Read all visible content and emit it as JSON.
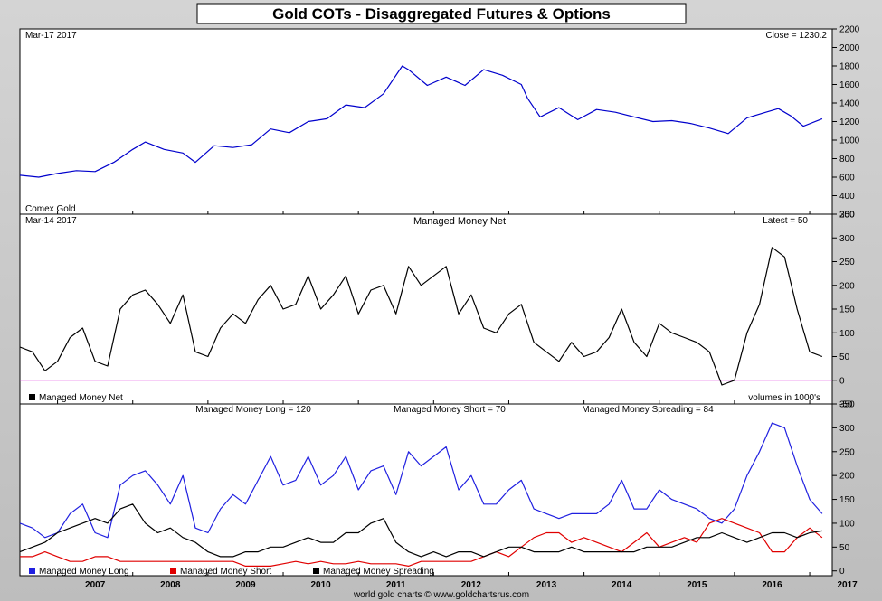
{
  "title": "Gold COTs - Disaggregated Futures & Options",
  "footer": "world gold charts © www.goldchartsrus.com",
  "years": [
    "2007",
    "2008",
    "2009",
    "2010",
    "2011",
    "2012",
    "2013",
    "2014",
    "2015",
    "2016",
    "2017"
  ],
  "colors": {
    "gold": "#0000cc",
    "net": "#000000",
    "zero": "#e040e0",
    "long": "#2020e0",
    "short": "#e00000",
    "spreading": "#000000"
  },
  "chart_data": [
    {
      "type": "line",
      "panel": "price",
      "title": "",
      "date_label": "Mar-17  2017",
      "readout": "Close = 1230.2",
      "label": "Comex Gold",
      "ylim": [
        200,
        2200
      ],
      "yticks": [
        "200",
        "400",
        "600",
        "800",
        "1000",
        "1200",
        "1400",
        "1600",
        "1800",
        "2000",
        "2200"
      ],
      "x": [
        "2006-07",
        "2006-10",
        "2007-01",
        "2007-04",
        "2007-07",
        "2007-10",
        "2008-01",
        "2008-03",
        "2008-06",
        "2008-09",
        "2008-11",
        "2009-02",
        "2009-05",
        "2009-08",
        "2009-11",
        "2010-02",
        "2010-05",
        "2010-08",
        "2010-11",
        "2011-02",
        "2011-05",
        "2011-08",
        "2011-09",
        "2011-12",
        "2012-03",
        "2012-06",
        "2012-09",
        "2012-12",
        "2013-03",
        "2013-04",
        "2013-06",
        "2013-09",
        "2013-12",
        "2014-03",
        "2014-06",
        "2014-09",
        "2014-12",
        "2015-03",
        "2015-06",
        "2015-09",
        "2015-12",
        "2016-03",
        "2016-06",
        "2016-08",
        "2016-10",
        "2016-12",
        "2017-03"
      ],
      "series": [
        {
          "name": "",
          "values": [
            620,
            600,
            640,
            670,
            660,
            760,
            900,
            980,
            900,
            860,
            760,
            940,
            920,
            950,
            1120,
            1080,
            1200,
            1230,
            1380,
            1350,
            1500,
            1800,
            1760,
            1590,
            1680,
            1590,
            1760,
            1700,
            1600,
            1450,
            1250,
            1350,
            1220,
            1330,
            1300,
            1250,
            1200,
            1210,
            1180,
            1130,
            1070,
            1240,
            1300,
            1340,
            1260,
            1150,
            1230.2
          ]
        }
      ]
    },
    {
      "type": "line",
      "panel": "net",
      "title": "Managed Money Net",
      "date_label": "Mar-14  2017",
      "readout": "Latest = 50",
      "legend": "Managed Money Net",
      "note": "volumes in 1000's",
      "ylim": [
        -50,
        350
      ],
      "yticks": [
        "-50",
        "0",
        "50",
        "100",
        "150",
        "200",
        "250",
        "300",
        "350"
      ],
      "x": [
        "2006-07",
        "2006-09",
        "2006-11",
        "2007-01",
        "2007-03",
        "2007-05",
        "2007-07",
        "2007-09",
        "2007-11",
        "2008-01",
        "2008-03",
        "2008-05",
        "2008-07",
        "2008-09",
        "2008-11",
        "2009-01",
        "2009-03",
        "2009-05",
        "2009-07",
        "2009-09",
        "2009-11",
        "2010-01",
        "2010-03",
        "2010-05",
        "2010-07",
        "2010-09",
        "2010-11",
        "2011-01",
        "2011-03",
        "2011-05",
        "2011-07",
        "2011-09",
        "2011-11",
        "2012-01",
        "2012-03",
        "2012-05",
        "2012-07",
        "2012-09",
        "2012-11",
        "2013-01",
        "2013-03",
        "2013-05",
        "2013-07",
        "2013-09",
        "2013-11",
        "2014-01",
        "2014-03",
        "2014-05",
        "2014-07",
        "2014-09",
        "2014-11",
        "2015-01",
        "2015-03",
        "2015-05",
        "2015-07",
        "2015-09",
        "2015-11",
        "2016-01",
        "2016-03",
        "2016-05",
        "2016-07",
        "2016-09",
        "2016-11",
        "2017-01",
        "2017-03"
      ],
      "series": [
        {
          "name": "Managed Money Net",
          "values": [
            70,
            60,
            20,
            40,
            90,
            110,
            40,
            30,
            150,
            180,
            190,
            160,
            120,
            180,
            60,
            50,
            110,
            140,
            120,
            170,
            200,
            150,
            160,
            220,
            150,
            180,
            220,
            140,
            190,
            200,
            140,
            240,
            200,
            220,
            240,
            140,
            180,
            110,
            100,
            140,
            160,
            80,
            60,
            40,
            80,
            50,
            60,
            90,
            150,
            80,
            50,
            120,
            100,
            90,
            80,
            60,
            -10,
            0,
            100,
            160,
            280,
            260,
            150,
            60,
            50
          ]
        }
      ]
    },
    {
      "type": "line",
      "panel": "components",
      "title": "",
      "readouts": [
        "Managed Money Long = 120",
        "Managed Money Short = 70",
        "Managed Money Spreading = 84"
      ],
      "ylim": [
        -10,
        350
      ],
      "yticks": [
        "0",
        "50",
        "100",
        "150",
        "200",
        "250",
        "300",
        "350"
      ],
      "x": [
        "2006-07",
        "2006-09",
        "2006-11",
        "2007-01",
        "2007-03",
        "2007-05",
        "2007-07",
        "2007-09",
        "2007-11",
        "2008-01",
        "2008-03",
        "2008-05",
        "2008-07",
        "2008-09",
        "2008-11",
        "2009-01",
        "2009-03",
        "2009-05",
        "2009-07",
        "2009-09",
        "2009-11",
        "2010-01",
        "2010-03",
        "2010-05",
        "2010-07",
        "2010-09",
        "2010-11",
        "2011-01",
        "2011-03",
        "2011-05",
        "2011-07",
        "2011-09",
        "2011-11",
        "2012-01",
        "2012-03",
        "2012-05",
        "2012-07",
        "2012-09",
        "2012-11",
        "2013-01",
        "2013-03",
        "2013-05",
        "2013-07",
        "2013-09",
        "2013-11",
        "2014-01",
        "2014-03",
        "2014-05",
        "2014-07",
        "2014-09",
        "2014-11",
        "2015-01",
        "2015-03",
        "2015-05",
        "2015-07",
        "2015-09",
        "2015-11",
        "2016-01",
        "2016-03",
        "2016-05",
        "2016-07",
        "2016-09",
        "2016-11",
        "2017-01",
        "2017-03"
      ],
      "series": [
        {
          "name": "Managed Money Long",
          "values": [
            100,
            90,
            70,
            80,
            120,
            140,
            80,
            70,
            180,
            200,
            210,
            180,
            140,
            200,
            90,
            80,
            130,
            160,
            140,
            190,
            240,
            180,
            190,
            240,
            180,
            200,
            240,
            170,
            210,
            220,
            160,
            250,
            220,
            240,
            260,
            170,
            200,
            140,
            140,
            170,
            190,
            130,
            120,
            110,
            120,
            120,
            120,
            140,
            190,
            130,
            130,
            170,
            150,
            140,
            130,
            110,
            100,
            130,
            200,
            250,
            310,
            300,
            220,
            150,
            120
          ]
        },
        {
          "name": "Managed Money Short",
          "values": [
            30,
            30,
            40,
            30,
            20,
            20,
            30,
            30,
            20,
            20,
            20,
            20,
            20,
            20,
            20,
            20,
            20,
            20,
            10,
            10,
            10,
            15,
            20,
            15,
            20,
            15,
            15,
            20,
            15,
            15,
            15,
            10,
            20,
            20,
            20,
            20,
            20,
            30,
            40,
            30,
            50,
            70,
            80,
            80,
            60,
            70,
            60,
            50,
            40,
            60,
            80,
            50,
            60,
            70,
            60,
            100,
            110,
            100,
            90,
            80,
            40,
            40,
            70,
            90,
            70
          ]
        },
        {
          "name": "Managed Money Spreading",
          "values": [
            40,
            50,
            60,
            80,
            90,
            100,
            110,
            100,
            130,
            140,
            100,
            80,
            90,
            70,
            60,
            40,
            30,
            30,
            40,
            40,
            50,
            50,
            60,
            70,
            60,
            60,
            80,
            80,
            100,
            110,
            60,
            40,
            30,
            40,
            30,
            40,
            40,
            30,
            40,
            50,
            50,
            40,
            40,
            40,
            50,
            40,
            40,
            40,
            40,
            40,
            50,
            50,
            50,
            60,
            70,
            70,
            80,
            70,
            60,
            70,
            80,
            80,
            70,
            80,
            84
          ]
        }
      ]
    }
  ]
}
